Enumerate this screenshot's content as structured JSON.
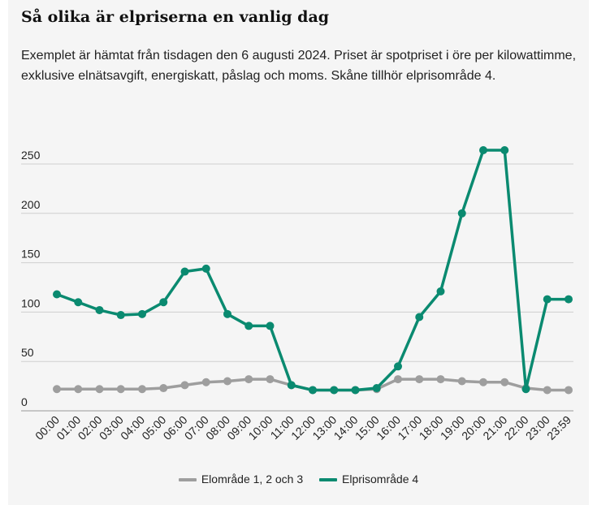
{
  "title": "Så olika är elpriserna en vanlig dag",
  "subtitle": "Exemplet är hämtat från tisdagen den 6 augusti 2024. Priset är spotpriset i öre per kilowattimme, exklusive elnätsavgift, energiskatt, påslag och moms. Skåne tillhör elprisområde 4.",
  "chart_data": {
    "type": "line",
    "categories": [
      "00:00",
      "01:00",
      "02:00",
      "03:00",
      "04:00",
      "05:00",
      "06:00",
      "07:00",
      "08:00",
      "09:00",
      "10:00",
      "11:00",
      "12:00",
      "13:00",
      "14:00",
      "15:00",
      "16:00",
      "17:00",
      "18:00",
      "19:00",
      "20:00",
      "21:00",
      "22:00",
      "23:00",
      "23:59"
    ],
    "ylim": [
      0,
      250
    ],
    "yticks": [
      0,
      50,
      100,
      150,
      200,
      250
    ],
    "series": [
      {
        "name": "Elområde 1, 2 och 3",
        "color": "#9e9e9e",
        "values": [
          22,
          22,
          22,
          22,
          22,
          23,
          26,
          29,
          30,
          32,
          32,
          26,
          21,
          21,
          21,
          22,
          32,
          32,
          32,
          30,
          29,
          29,
          23,
          21,
          21
        ]
      },
      {
        "name": "Elprisområde 4",
        "color": "#0a8a70",
        "values": [
          118,
          110,
          102,
          97,
          98,
          110,
          141,
          144,
          98,
          86,
          86,
          26,
          21,
          21,
          21,
          23,
          45,
          95,
          121,
          200,
          264,
          264,
          22,
          113,
          113
        ]
      }
    ],
    "legend_position": "bottom-center"
  }
}
